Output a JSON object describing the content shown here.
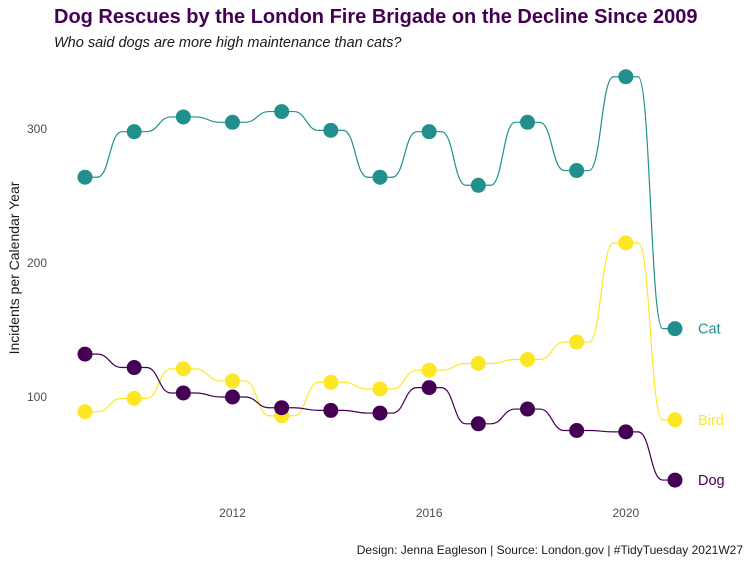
{
  "title": "Dog Rescues by the London Fire Brigade on the Decline Since 2009",
  "subtitle": "Who said dogs are more high maintenance than cats?",
  "caption": "Design: Jenna Eagleson | Source: London.gov | #TidyTuesday 2021W27",
  "colors": {
    "title": "#440154",
    "cat": "#21908C",
    "bird": "#FDE725",
    "dog": "#440154"
  },
  "chart_data": {
    "type": "line",
    "title": "Dog Rescues by the London Fire Brigade on the Decline Since 2009",
    "subtitle": "Who said dogs are more high maintenance than cats?",
    "xlabel": "",
    "ylabel": "Incidents per Calendar Year",
    "x": [
      2009,
      2010,
      2011,
      2012,
      2013,
      2014,
      2015,
      2016,
      2017,
      2018,
      2019,
      2020,
      2021
    ],
    "x_ticks": [
      2012,
      2016,
      2020
    ],
    "y_ticks": [
      100,
      200,
      300
    ],
    "xlim": [
      2008.6,
      2021.7
    ],
    "ylim": [
      27,
      350
    ],
    "grid": false,
    "legend": "direct labels at line ends",
    "series": [
      {
        "name": "Cat",
        "color": "#21908C",
        "values": [
          264,
          298,
          309,
          305,
          313,
          299,
          264,
          298,
          258,
          305,
          269,
          339,
          151
        ]
      },
      {
        "name": "Bird",
        "color": "#FDE725",
        "values": [
          89,
          99,
          121,
          112,
          86,
          111,
          106,
          120,
          125,
          128,
          141,
          215,
          83
        ]
      },
      {
        "name": "Dog",
        "color": "#440154",
        "values": [
          132,
          122,
          103,
          100,
          92,
          90,
          88,
          107,
          80,
          91,
          75,
          74,
          38
        ]
      }
    ]
  }
}
